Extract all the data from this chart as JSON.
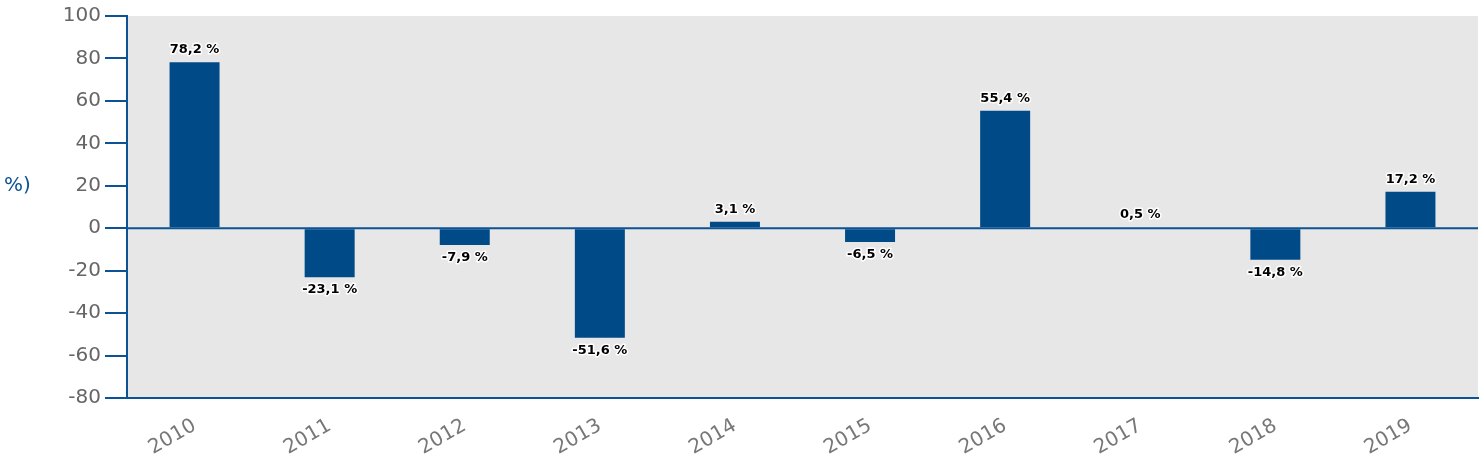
{
  "chart_data": {
    "type": "bar",
    "ylabel": "%)",
    "categories": [
      "2010",
      "2011",
      "2012",
      "2013",
      "2014",
      "2015",
      "2016",
      "2017",
      "2018",
      "2019"
    ],
    "values": [
      78.2,
      -23.1,
      -7.9,
      -51.6,
      3.1,
      -6.5,
      55.4,
      0.5,
      -14.8,
      17.2
    ],
    "value_labels": [
      "78,2 %",
      "-23,1 %",
      "-7,9 %",
      "-51,6 %",
      "3,1 %",
      "-6,5 %",
      "55,4 %",
      "0,5 %",
      "-14,8 %",
      "17,2 %"
    ],
    "color": "#004a87",
    "ylim": [
      -80,
      100
    ],
    "yticks": [
      -80,
      -60,
      -40,
      -20,
      0,
      20,
      40,
      60,
      80,
      100
    ],
    "grid": false,
    "legend": false,
    "ref_lines": [
      {
        "axis": "y",
        "value": 0,
        "color": "#0b5394"
      }
    ]
  }
}
